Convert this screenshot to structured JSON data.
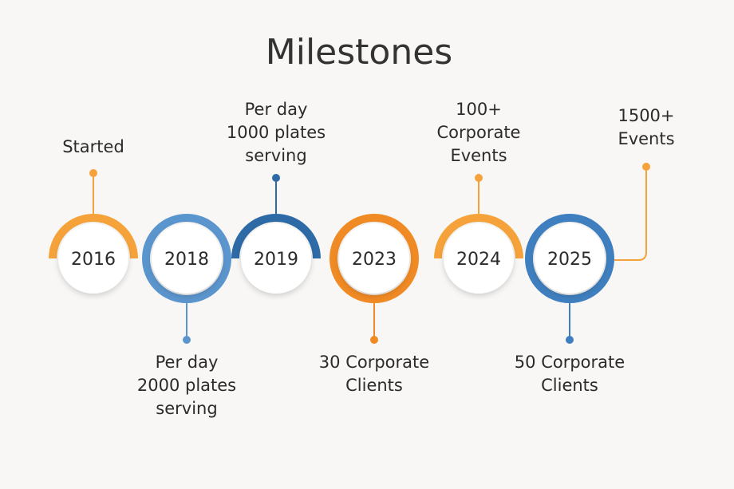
{
  "title": "Milestones",
  "colors": {
    "orange": "#f5a23a",
    "light_blue": "#5b95cd",
    "dark_blue": "#2d6aa6",
    "deep_orange": "#f08a24",
    "background": "#f8f7f5"
  },
  "milestones": [
    {
      "year": "2016",
      "label_lines": [
        "Started"
      ],
      "label_position": "top",
      "ring_color": "#f5a23a",
      "ring_style": "top-arc"
    },
    {
      "year": "2018",
      "label_lines": [
        "Per day",
        "2000 plates",
        "serving"
      ],
      "label_position": "bottom",
      "ring_color": "#5b95cd",
      "ring_style": "full"
    },
    {
      "year": "2019",
      "label_lines": [
        "Per day",
        "1000 plates",
        "serving"
      ],
      "label_position": "top",
      "ring_color": "#2d6aa6",
      "ring_style": "top-arc"
    },
    {
      "year": "2023",
      "label_lines": [
        "30 Corporate",
        "Clients"
      ],
      "label_position": "bottom",
      "ring_color": "#f08a24",
      "ring_style": "full"
    },
    {
      "year": "2024",
      "label_lines": [
        "100+",
        "Corporate",
        "Events"
      ],
      "label_position": "top",
      "ring_color": "#f5a23a",
      "ring_style": "top-arc"
    },
    {
      "year": "2025",
      "label_lines": [
        "50 Corporate",
        "Clients"
      ],
      "label_position": "bottom",
      "ring_color": "#3f7fbf",
      "ring_style": "full"
    }
  ],
  "extra_milestone": {
    "label_lines": [
      "1500+",
      "Events"
    ],
    "connector_color": "#f5a23a"
  }
}
